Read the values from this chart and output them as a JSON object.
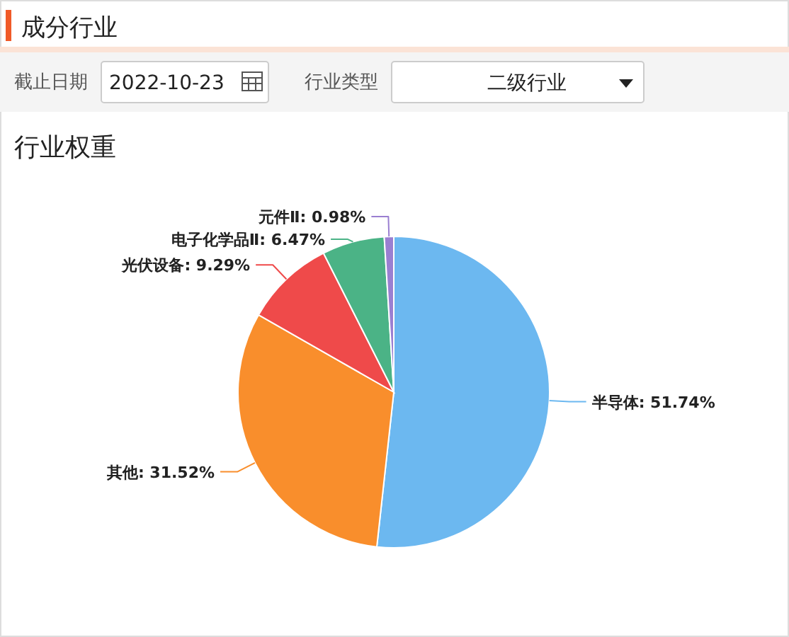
{
  "chart_data": {
    "type": "pie",
    "title": "行业权重",
    "annotations": [
      "成分行业",
      "截止日期",
      "2022-10-23",
      "行业类型",
      "二级行业"
    ],
    "categories": [
      "半导体",
      "其他",
      "光伏设备",
      "电子化学品Ⅱ",
      "元件Ⅱ"
    ],
    "values": [
      51.74,
      31.52,
      9.29,
      6.47,
      0.98
    ],
    "value_labels": [
      "51.74%",
      "31.52%",
      "9.29%",
      "6.47%",
      "0.98%"
    ],
    "colors": [
      "#6cb8f0",
      "#f98e2c",
      "#ef4a4a",
      "#4bb386",
      "#9a7fd1"
    ]
  }
}
